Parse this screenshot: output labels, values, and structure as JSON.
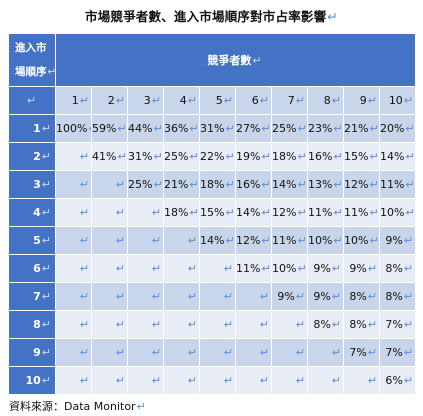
{
  "title": "市場競爭者數、進入市場順序對市占率影響",
  "para_mark": "↵",
  "header": {
    "corner_line1": "進入市",
    "corner_line2": "場順序",
    "competitors_label": "競爭者數"
  },
  "columns": [
    "1",
    "2",
    "3",
    "4",
    "5",
    "6",
    "7",
    "8",
    "9",
    "10"
  ],
  "rows": [
    {
      "order": "1",
      "values": [
        "100%",
        "59%",
        "44%",
        "36%",
        "31%",
        "27%",
        "25%",
        "23%",
        "21%",
        "20%"
      ]
    },
    {
      "order": "2",
      "values": [
        "",
        "41%",
        "31%",
        "25%",
        "22%",
        "19%",
        "18%",
        "16%",
        "15%",
        "14%"
      ]
    },
    {
      "order": "3",
      "values": [
        "",
        "",
        "25%",
        "21%",
        "18%",
        "16%",
        "14%",
        "13%",
        "12%",
        "11%"
      ]
    },
    {
      "order": "4",
      "values": [
        "",
        "",
        "",
        "18%",
        "15%",
        "14%",
        "12%",
        "11%",
        "11%",
        "10%"
      ]
    },
    {
      "order": "5",
      "values": [
        "",
        "",
        "",
        "",
        "14%",
        "12%",
        "11%",
        "10%",
        "10%",
        "9%"
      ]
    },
    {
      "order": "6",
      "values": [
        "",
        "",
        "",
        "",
        "",
        "11%",
        "10%",
        "9%",
        "9%",
        "8%"
      ]
    },
    {
      "order": "7",
      "values": [
        "",
        "",
        "",
        "",
        "",
        "",
        "9%",
        "9%",
        "8%",
        "8%"
      ]
    },
    {
      "order": "8",
      "values": [
        "",
        "",
        "",
        "",
        "",
        "",
        "",
        "8%",
        "8%",
        "7%"
      ]
    },
    {
      "order": "9",
      "values": [
        "",
        "",
        "",
        "",
        "",
        "",
        "",
        "",
        "7%",
        "7%"
      ]
    },
    {
      "order": "10",
      "values": [
        "",
        "",
        "",
        "",
        "",
        "",
        "",
        "",
        "",
        "6%"
      ]
    }
  ],
  "source": "資料來源：Data Monitor"
}
